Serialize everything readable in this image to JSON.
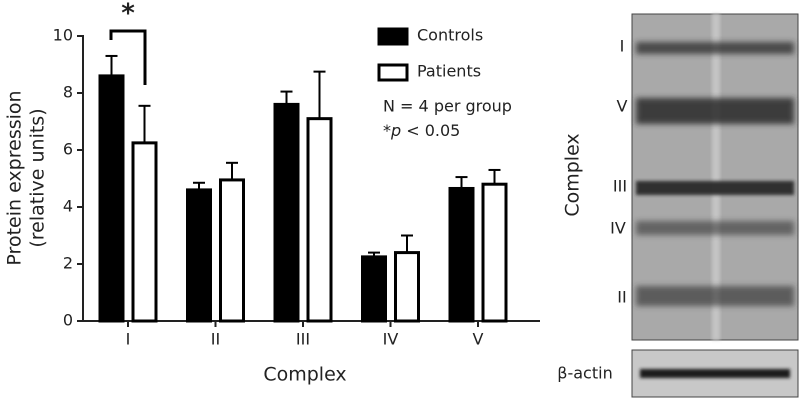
{
  "chart_data": {
    "type": "bar",
    "y_label_lines": [
      "Protein expression",
      "(relative units)"
    ],
    "x_label": "Complex",
    "categories": [
      "I",
      "II",
      "III",
      "IV",
      "V"
    ],
    "series": [
      {
        "name": "Controls",
        "color": "#000000",
        "values": [
          8.6,
          4.6,
          7.6,
          2.25,
          4.65
        ],
        "errors": [
          0.7,
          0.25,
          0.45,
          0.15,
          0.4
        ]
      },
      {
        "name": "Patients",
        "color": "#ffffff",
        "values": [
          6.25,
          4.95,
          7.1,
          2.4,
          4.8
        ],
        "errors": [
          1.3,
          0.6,
          1.65,
          0.6,
          0.5
        ]
      }
    ],
    "ylim": [
      0,
      10
    ],
    "yticks": [
      0,
      2,
      4,
      6,
      8,
      10
    ],
    "significance": "*",
    "notes": [
      "N = 4 per group"
    ],
    "p_note": {
      "star": "*",
      "p": "p",
      "rest": " < 0.05"
    }
  },
  "blot": {
    "axis_label": "Complex",
    "bands": [
      "I",
      "V",
      "III",
      "IV",
      "II"
    ],
    "loading_control": "β-actin"
  }
}
